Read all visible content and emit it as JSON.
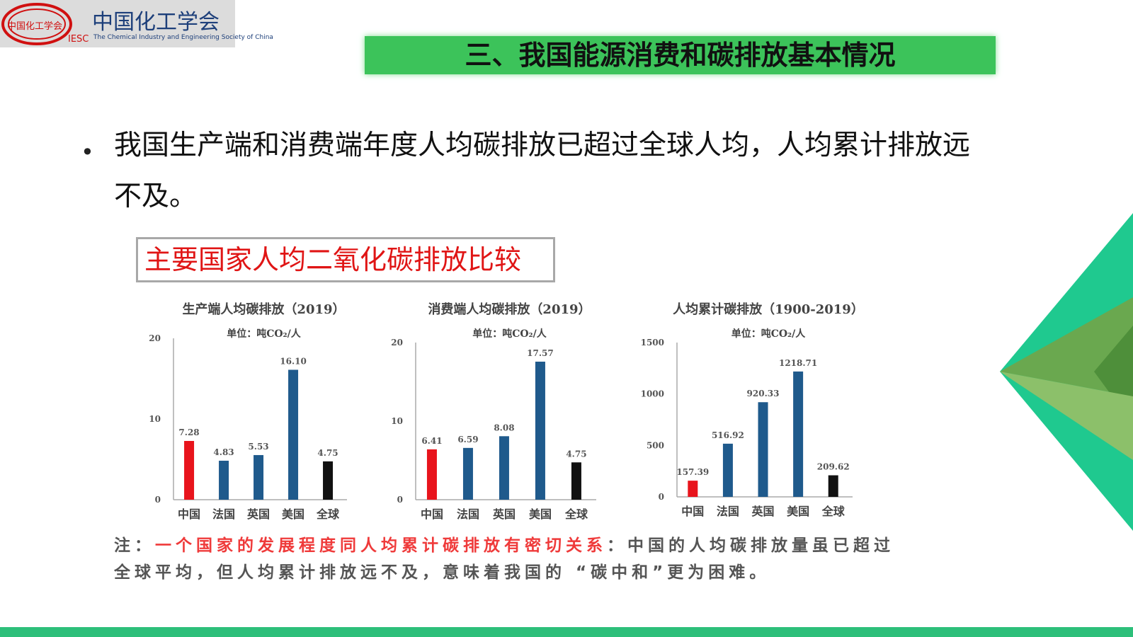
{
  "header": {
    "logo_badge": "中国化工学会",
    "logo_abbr": "IESC",
    "logo_name": "中国化工学会",
    "logo_english": "The Chemical Industry and Engineering Society of China",
    "title": "三、我国能源消费和碳排放基本情况"
  },
  "bullet": "我国生产端和消费端年度人均碳排放已超过全球人均，人均累计排放远不及。",
  "box_title": "主要国家人均二氧化碳排放比较",
  "note": {
    "label": "注：",
    "highlight": "一个国家的发展程度同人均累计碳排放有密切关系",
    "text": "：中国的人均碳排放量虽已超过全球平均，但人均累计排放远不及，意味着我国的 “碳中和”更为困难。"
  },
  "chart_data": [
    {
      "type": "bar",
      "title": "生产端人均碳排放（2019）",
      "subtitle": "单位：吨CO₂/人",
      "categories": [
        "中国",
        "法国",
        "英国",
        "美国",
        "全球"
      ],
      "values": [
        7.28,
        4.83,
        5.53,
        16.1,
        4.75
      ],
      "value_labels": [
        "7.28",
        "4.83",
        "5.53",
        "16.10",
        "4.75"
      ],
      "colors": [
        "#e8141c",
        "#1f5a8c",
        "#1f5a8c",
        "#1f5a8c",
        "#111111"
      ],
      "ylim": [
        0,
        20
      ],
      "yticks": [
        0,
        10,
        20
      ]
    },
    {
      "type": "bar",
      "title": "消费端人均碳排放（2019）",
      "subtitle": "单位：吨CO₂/人",
      "categories": [
        "中国",
        "法国",
        "英国",
        "美国",
        "全球"
      ],
      "values": [
        6.41,
        6.59,
        8.08,
        17.57,
        4.75
      ],
      "value_labels": [
        "6.41",
        "6.59",
        "8.08",
        "17.57",
        "4.75"
      ],
      "colors": [
        "#e8141c",
        "#1f5a8c",
        "#1f5a8c",
        "#1f5a8c",
        "#111111"
      ],
      "ylim": [
        0,
        20
      ],
      "yticks": [
        0,
        10,
        20
      ]
    },
    {
      "type": "bar",
      "title": "人均累计碳排放（1900-2019）",
      "subtitle": "单位：吨CO₂/人",
      "categories": [
        "中国",
        "法国",
        "英国",
        "美国",
        "全球"
      ],
      "values": [
        157.39,
        516.92,
        920.33,
        1218.71,
        209.62
      ],
      "value_labels": [
        "157.39",
        "516.92",
        "920.33",
        "1218.71",
        "209.62"
      ],
      "colors": [
        "#e8141c",
        "#1f5a8c",
        "#1f5a8c",
        "#1f5a8c",
        "#111111"
      ],
      "ylim": [
        0,
        1500
      ],
      "yticks": [
        0,
        500,
        1000,
        1500
      ]
    }
  ]
}
